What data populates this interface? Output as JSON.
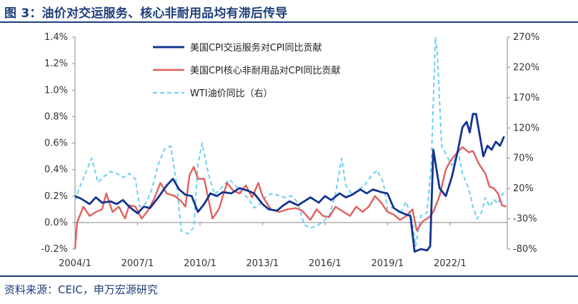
{
  "header": {
    "title": "图 3：油价对交运服务、核心非耐用品均有滞后传导"
  },
  "footer": {
    "source": "资料来源：CEIC，申万宏源研究"
  },
  "colors": {
    "brand": "#1f3e7a",
    "series1": "#13348f",
    "series2": "#e0605e",
    "series3": "#6ccff3"
  },
  "chart_data": {
    "type": "line",
    "title": "",
    "xlabel": "",
    "ylabel": "",
    "legend_position": "top-center",
    "grid": false,
    "x_ticks": [
      "2004/1",
      "2007/1",
      "2010/1",
      "2013/1",
      "2016/1",
      "2019/1",
      "2022/1"
    ],
    "x_range": [
      2004.0,
      2024.75
    ],
    "y_left": {
      "min": -0.2,
      "max": 1.4,
      "step": 0.2,
      "ticks": [
        "-0.2%",
        "0.0%",
        "0.2%",
        "0.4%",
        "0.6%",
        "0.8%",
        "1.0%",
        "1.2%",
        "1.4%"
      ]
    },
    "y_right": {
      "min": -80,
      "max": 270,
      "step": 50,
      "ticks": [
        "-80%",
        "-30%",
        "20%",
        "70%",
        "120%",
        "170%",
        "220%",
        "270%"
      ]
    },
    "series": [
      {
        "name": "美国CPI交运服务对CPI同比贡献",
        "axis": "left",
        "style": "solid",
        "color": "#13348f",
        "points": [
          [
            2004.0,
            0.2
          ],
          [
            2004.3,
            0.18
          ],
          [
            2004.7,
            0.14
          ],
          [
            2005.0,
            0.19
          ],
          [
            2005.3,
            0.15
          ],
          [
            2005.7,
            0.16
          ],
          [
            2006.0,
            0.14
          ],
          [
            2006.3,
            0.17
          ],
          [
            2006.6,
            0.12
          ],
          [
            2007.0,
            0.07
          ],
          [
            2007.3,
            0.12
          ],
          [
            2007.6,
            0.11
          ],
          [
            2008.0,
            0.19
          ],
          [
            2008.4,
            0.28
          ],
          [
            2008.7,
            0.33
          ],
          [
            2009.0,
            0.25
          ],
          [
            2009.3,
            0.21
          ],
          [
            2009.6,
            0.2
          ],
          [
            2009.9,
            0.08
          ],
          [
            2010.2,
            0.14
          ],
          [
            2010.5,
            0.22
          ],
          [
            2010.8,
            0.2
          ],
          [
            2011.1,
            0.23
          ],
          [
            2011.5,
            0.22
          ],
          [
            2011.9,
            0.26
          ],
          [
            2012.3,
            0.24
          ],
          [
            2012.6,
            0.22
          ],
          [
            2013.0,
            0.14
          ],
          [
            2013.3,
            0.1
          ],
          [
            2013.7,
            0.09
          ],
          [
            2014.0,
            0.13
          ],
          [
            2014.3,
            0.16
          ],
          [
            2014.7,
            0.13
          ],
          [
            2015.0,
            0.16
          ],
          [
            2015.3,
            0.19
          ],
          [
            2015.7,
            0.15
          ],
          [
            2016.0,
            0.2
          ],
          [
            2016.3,
            0.17
          ],
          [
            2016.7,
            0.22
          ],
          [
            2017.0,
            0.19
          ],
          [
            2017.3,
            0.21
          ],
          [
            2017.7,
            0.25
          ],
          [
            2018.0,
            0.22
          ],
          [
            2018.3,
            0.25
          ],
          [
            2018.7,
            0.23
          ],
          [
            2019.0,
            0.22
          ],
          [
            2019.3,
            0.11
          ],
          [
            2019.6,
            0.08
          ],
          [
            2019.9,
            0.06
          ],
          [
            2020.1,
            0.05
          ],
          [
            2020.3,
            -0.22
          ],
          [
            2020.6,
            -0.2
          ],
          [
            2020.9,
            -0.21
          ],
          [
            2021.05,
            -0.18
          ],
          [
            2021.2,
            0.55
          ],
          [
            2021.5,
            0.26
          ],
          [
            2021.8,
            0.2
          ],
          [
            2022.1,
            0.35
          ],
          [
            2022.4,
            0.56
          ],
          [
            2022.6,
            0.72
          ],
          [
            2022.8,
            0.76
          ],
          [
            2022.95,
            0.68
          ],
          [
            2023.1,
            0.82
          ],
          [
            2023.25,
            0.82
          ],
          [
            2023.45,
            0.64
          ],
          [
            2023.6,
            0.5
          ],
          [
            2023.8,
            0.58
          ],
          [
            2024.0,
            0.55
          ],
          [
            2024.2,
            0.61
          ],
          [
            2024.4,
            0.58
          ],
          [
            2024.6,
            0.65
          ]
        ]
      },
      {
        "name": "美国CPI核心非耐用品对CPI同比贡献",
        "axis": "left",
        "style": "solid",
        "color": "#e0605e",
        "points": [
          [
            2004.0,
            -0.2
          ],
          [
            2004.1,
            0.0
          ],
          [
            2004.4,
            0.12
          ],
          [
            2004.7,
            0.05
          ],
          [
            2005.0,
            0.08
          ],
          [
            2005.3,
            0.1
          ],
          [
            2005.5,
            0.22
          ],
          [
            2005.8,
            0.08
          ],
          [
            2006.1,
            0.12
          ],
          [
            2006.4,
            0.03
          ],
          [
            2006.6,
            0.13
          ],
          [
            2006.9,
            0.12
          ],
          [
            2007.2,
            0.03
          ],
          [
            2007.5,
            0.09
          ],
          [
            2007.8,
            0.18
          ],
          [
            2008.1,
            0.3
          ],
          [
            2008.4,
            0.22
          ],
          [
            2008.8,
            0.2
          ],
          [
            2009.1,
            0.16
          ],
          [
            2009.3,
            0.12
          ],
          [
            2009.5,
            0.36
          ],
          [
            2009.7,
            0.42
          ],
          [
            2009.9,
            0.33
          ],
          [
            2010.2,
            0.33
          ],
          [
            2010.6,
            0.03
          ],
          [
            2010.9,
            0.1
          ],
          [
            2011.3,
            0.3
          ],
          [
            2011.6,
            0.24
          ],
          [
            2011.9,
            0.22
          ],
          [
            2012.2,
            0.28
          ],
          [
            2012.5,
            0.19
          ],
          [
            2012.8,
            0.3
          ],
          [
            2013.0,
            0.2
          ],
          [
            2013.4,
            0.1
          ],
          [
            2013.8,
            0.08
          ],
          [
            2014.2,
            0.1
          ],
          [
            2014.6,
            0.11
          ],
          [
            2014.9,
            0.09
          ],
          [
            2015.3,
            0.02
          ],
          [
            2015.6,
            0.1
          ],
          [
            2015.9,
            0.05
          ],
          [
            2016.2,
            0.04
          ],
          [
            2016.5,
            0.12
          ],
          [
            2016.8,
            0.09
          ],
          [
            2017.2,
            0.05
          ],
          [
            2017.5,
            0.12
          ],
          [
            2017.8,
            0.08
          ],
          [
            2018.1,
            0.12
          ],
          [
            2018.4,
            0.2
          ],
          [
            2018.7,
            0.15
          ],
          [
            2019.0,
            0.08
          ],
          [
            2019.3,
            0.06
          ],
          [
            2019.6,
            0.02
          ],
          [
            2019.9,
            0.05
          ],
          [
            2020.2,
            0.1
          ],
          [
            2020.4,
            -0.06
          ],
          [
            2020.7,
            0.01
          ],
          [
            2021.0,
            0.04
          ],
          [
            2021.2,
            0.08
          ],
          [
            2021.5,
            0.2
          ],
          [
            2021.8,
            0.4
          ],
          [
            2022.0,
            0.46
          ],
          [
            2022.3,
            0.52
          ],
          [
            2022.6,
            0.57
          ],
          [
            2022.9,
            0.53
          ],
          [
            2023.1,
            0.54
          ],
          [
            2023.4,
            0.44
          ],
          [
            2023.7,
            0.37
          ],
          [
            2023.9,
            0.27
          ],
          [
            2024.1,
            0.26
          ],
          [
            2024.3,
            0.22
          ],
          [
            2024.5,
            0.13
          ],
          [
            2024.7,
            0.12
          ]
        ]
      },
      {
        "name": "WTI油价同比（右）",
        "axis": "right",
        "style": "dashed",
        "color": "#6ccff3",
        "points": [
          [
            2004.0,
            0
          ],
          [
            2004.2,
            20
          ],
          [
            2004.5,
            45
          ],
          [
            2004.8,
            70
          ],
          [
            2005.1,
            30
          ],
          [
            2005.4,
            40
          ],
          [
            2005.7,
            48
          ],
          [
            2006.0,
            45
          ],
          [
            2006.3,
            38
          ],
          [
            2006.6,
            45
          ],
          [
            2006.9,
            35
          ],
          [
            2007.1,
            -10
          ],
          [
            2007.4,
            -5
          ],
          [
            2007.7,
            20
          ],
          [
            2008.0,
            60
          ],
          [
            2008.3,
            85
          ],
          [
            2008.6,
            90
          ],
          [
            2008.9,
            20
          ],
          [
            2009.1,
            -50
          ],
          [
            2009.4,
            -55
          ],
          [
            2009.7,
            -45
          ],
          [
            2009.9,
            60
          ],
          [
            2010.1,
            95
          ],
          [
            2010.4,
            45
          ],
          [
            2010.7,
            10
          ],
          [
            2011.0,
            20
          ],
          [
            2011.4,
            35
          ],
          [
            2011.7,
            25
          ],
          [
            2012.0,
            12
          ],
          [
            2012.3,
            5
          ],
          [
            2012.6,
            -12
          ],
          [
            2012.9,
            -5
          ],
          [
            2013.2,
            8
          ],
          [
            2013.5,
            12
          ],
          [
            2013.8,
            8
          ],
          [
            2014.1,
            5
          ],
          [
            2014.4,
            8
          ],
          [
            2014.7,
            -3
          ],
          [
            2015.0,
            -40
          ],
          [
            2015.3,
            -45
          ],
          [
            2015.6,
            -42
          ],
          [
            2015.9,
            -35
          ],
          [
            2016.2,
            -25
          ],
          [
            2016.5,
            10
          ],
          [
            2016.8,
            70
          ],
          [
            2017.0,
            25
          ],
          [
            2017.3,
            10
          ],
          [
            2017.6,
            18
          ],
          [
            2017.9,
            25
          ],
          [
            2018.2,
            40
          ],
          [
            2018.5,
            50
          ],
          [
            2018.8,
            30
          ],
          [
            2019.0,
            -15
          ],
          [
            2019.3,
            -10
          ],
          [
            2019.6,
            -22
          ],
          [
            2019.9,
            -2
          ],
          [
            2020.2,
            -35
          ],
          [
            2020.35,
            -75
          ],
          [
            2020.6,
            -25
          ],
          [
            2020.9,
            -20
          ],
          [
            2021.1,
            60
          ],
          [
            2021.3,
            270
          ],
          [
            2021.4,
            240
          ],
          [
            2021.6,
            90
          ],
          [
            2021.9,
            70
          ],
          [
            2022.1,
            58
          ],
          [
            2022.4,
            80
          ],
          [
            2022.6,
            45
          ],
          [
            2022.9,
            20
          ],
          [
            2023.1,
            -10
          ],
          [
            2023.3,
            -30
          ],
          [
            2023.5,
            -20
          ],
          [
            2023.7,
            5
          ],
          [
            2023.9,
            -10
          ],
          [
            2024.1,
            2
          ],
          [
            2024.3,
            -5
          ],
          [
            2024.5,
            10
          ],
          [
            2024.7,
            15
          ]
        ]
      }
    ]
  }
}
